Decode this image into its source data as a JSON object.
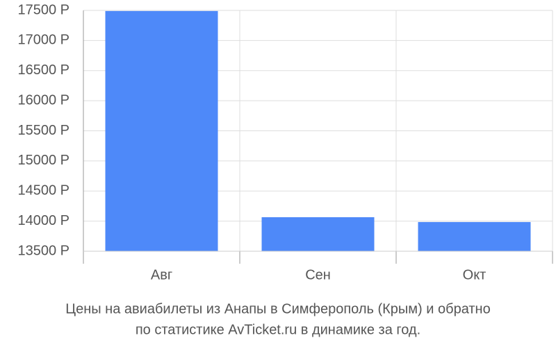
{
  "chart_data": {
    "type": "bar",
    "title": [
      "Цены на авиабилеты из Анапы в Симферополь (Крым) и обратно",
      "по статистике AvTicket.ru в динамике за год."
    ],
    "categories": [
      "Авг",
      "Сен",
      "Окт"
    ],
    "values": [
      17490,
      14065,
      13985
    ],
    "color": "#4e89f9",
    "ylim": [
      13500,
      17500
    ],
    "yticks": [
      {
        "value": 13500,
        "label": "13500 Р"
      },
      {
        "value": 14000,
        "label": "14000 Р"
      },
      {
        "value": 14500,
        "label": "14500 Р"
      },
      {
        "value": 15000,
        "label": "15000 Р"
      },
      {
        "value": 15500,
        "label": "15500 Р"
      },
      {
        "value": 16000,
        "label": "16000 Р"
      },
      {
        "value": 16500,
        "label": "16500 Р"
      },
      {
        "value": 17000,
        "label": "17000 Р"
      },
      {
        "value": 17500,
        "label": "17500 Р"
      }
    ],
    "grid": true
  }
}
